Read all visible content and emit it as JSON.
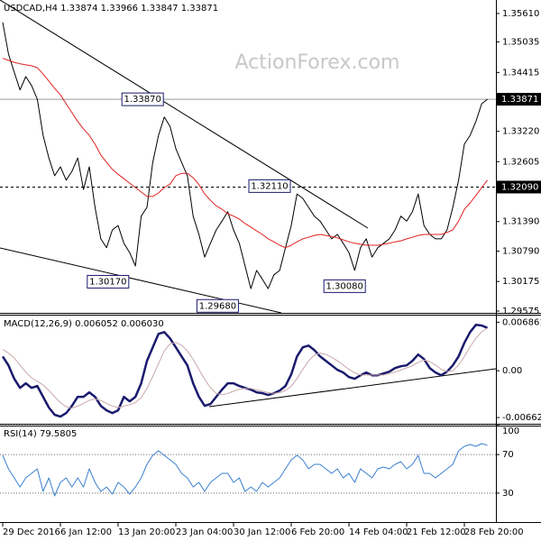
{
  "chart_data": [
    {
      "type": "line",
      "title": "USDCAD,H4  1.33874 1.33966 1.33847 1.33871",
      "watermark": "ActionForex.com",
      "ylim": [
        1.29575,
        1.35884
      ],
      "yticks": [
        {
          "value": 1.3561,
          "label": "1.35610"
        },
        1.35035,
        1.34415,
        {
          "value": 1.3322,
          "label": "1.33220"
        },
        1.32605,
        {
          "value": 1.3139,
          "label": "1.31390"
        },
        {
          "value": 1.3079,
          "label": "1.30790"
        },
        1.30175,
        1.29575
      ],
      "levels": [
        {
          "value": 1.33871,
          "dashed": false
        },
        {
          "value": {
            "value": 1.3209,
            "label": "1.32090"
          },
          "dashed": true
        }
      ],
      "annotations": [
        {
          "value": 1.3387,
          "label": "1.33870",
          "at": 28
        },
        {
          "value": 1.3017,
          "label": "1.30170",
          "at": 22
        },
        {
          "value": 1.2968,
          "label": "1.29680",
          "at": 41
        },
        {
          "value": 1.3211,
          "label": "1.32110",
          "at": 50
        },
        {
          "value": 1.3008,
          "label": "1.30080",
          "at": 63
        }
      ],
      "series": [
        {
          "color": "#000000",
          "values": [
            1.3543,
            1.3479,
            1.3442,
            1.3406,
            1.3433,
            1.3415,
            1.3387,
            1.3314,
            1.3268,
            1.3232,
            1.325,
            1.3223,
            1.3241,
            1.3268,
            1.3204,
            1.325,
            1.3168,
            1.3104,
            1.3086,
            1.3122,
            1.3131,
            1.3095,
            1.3076,
            1.3049,
            1.315,
            1.3168,
            1.3259,
            1.3314,
            1.3351,
            1.3332,
            1.3287,
            1.3259,
            1.3232,
            1.315,
            1.3113,
            1.3067,
            1.3095,
            1.3122,
            1.314,
            1.3159,
            1.3122,
            1.3095,
            1.3049,
            1.3003,
            1.304,
            1.3022,
            1.3003,
            1.3031,
            1.304,
            1.3086,
            1.3131,
            1.3195,
            1.3186,
            1.3168,
            1.315,
            1.314,
            1.3122,
            1.3104,
            1.3113,
            1.3095,
            1.3076,
            1.304,
            1.3086,
            1.3104,
            1.3067,
            1.3086,
            1.3095,
            1.3104,
            1.3122,
            1.315,
            1.314,
            1.3159,
            1.3195,
            1.3131,
            1.3113,
            1.3104,
            1.3104,
            1.3122,
            1.3168,
            1.3223,
            1.3296,
            1.3314,
            1.3342,
            1.3378,
            1.33871
          ]
        },
        {
          "color": "#e02020",
          "values": [
            1.347,
            1.3466,
            1.3462,
            1.3459,
            1.3457,
            1.3455,
            1.3451,
            1.3438,
            1.3424,
            1.3409,
            1.3396,
            1.3378,
            1.336,
            1.3342,
            1.3327,
            1.3314,
            1.3296,
            1.3274,
            1.3259,
            1.3245,
            1.3235,
            1.3226,
            1.3217,
            1.3208,
            1.3199,
            1.319,
            1.319,
            1.3197,
            1.3208,
            1.3215,
            1.3232,
            1.3237,
            1.3237,
            1.3228,
            1.3214,
            1.3195,
            1.3182,
            1.3171,
            1.3164,
            1.3155,
            1.315,
            1.3144,
            1.3135,
            1.3128,
            1.312,
            1.3113,
            1.3104,
            1.3098,
            1.3091,
            1.3086,
            1.3091,
            1.3098,
            1.3104,
            1.3107,
            1.3111,
            1.3113,
            1.3111,
            1.3109,
            1.3106,
            1.3102,
            1.3098,
            1.3095,
            1.3093,
            1.3091,
            1.3091,
            1.3091,
            1.3093,
            1.3095,
            1.3098,
            1.31,
            1.3104,
            1.3107,
            1.3111,
            1.3113,
            1.3113,
            1.3113,
            1.3113,
            1.3117,
            1.3122,
            1.314,
            1.3164,
            1.3177,
            1.3192,
            1.3208,
            1.3223
          ]
        }
      ]
    },
    {
      "type": "line",
      "title": "MACD(12,26,9) 0.006052 0.006030",
      "ylim": [
        -0.0075,
        0.0078
      ],
      "yticks": [
        0.006861,
        {
          "value": 0,
          "label": "0.00"
        },
        -0.00662
      ],
      "series": [
        {
          "color": "#1a1a6e",
          "values": [
            0.00203,
            0.00076,
            -0.00114,
            -0.00242,
            -0.00178,
            -0.00242,
            -0.00216,
            -0.00369,
            -0.00521,
            -0.00623,
            -0.00649,
            -0.00598,
            -0.00496,
            -0.00369,
            -0.00369,
            -0.00305,
            -0.00369,
            -0.00496,
            -0.0056,
            -0.00598,
            -0.0056,
            -0.00369,
            -0.00432,
            -0.00369,
            -0.00178,
            0.0014,
            0.00331,
            0.00521,
            0.00547,
            0.00458,
            0.00331,
            0.00203,
            0.00076,
            -0.00178,
            -0.00369,
            -0.00496,
            -0.00471,
            -0.00369,
            -0.00267,
            -0.00178,
            -0.00178,
            -0.00216,
            -0.00242,
            -0.00267,
            -0.00305,
            -0.00318,
            -0.00343,
            -0.00318,
            -0.0028,
            -0.00216,
            -0.00051,
            0.00203,
            0.00331,
            0.00356,
            0.00293,
            0.00203,
            0.0014,
            0.00076,
            0.00013,
            -0.00025,
            -0.00089,
            -0.00114,
            -0.00064,
            -0.00025,
            -0.00064,
            -0.00064,
            -0.00038,
            -0.00013,
            0.00038,
            0.00064,
            0.00076,
            0.0014,
            0.00229,
            0.00165,
            0.00038,
            -0.00025,
            -0.00064,
            -0.00013,
            0.00076,
            0.00203,
            0.00394,
            0.00547,
            0.00649,
            0.0064,
            0.00605
          ]
        },
        {
          "color": "#c8a8a8",
          "values": [
            0.003,
            0.0025,
            0.0018,
            0.0008,
            -0.0002,
            -0.001,
            -0.0015,
            -0.002,
            -0.0028,
            -0.0037,
            -0.0045,
            -0.0051,
            -0.0053,
            -0.005,
            -0.0046,
            -0.0042,
            -0.004,
            -0.0042,
            -0.0046,
            -0.005,
            -0.0052,
            -0.005,
            -0.0048,
            -0.0045,
            -0.0038,
            -0.0025,
            -0.0008,
            0.001,
            0.0028,
            0.0038,
            0.004,
            0.0036,
            0.0028,
            0.0016,
            0.0002,
            -0.0012,
            -0.0024,
            -0.0032,
            -0.0034,
            -0.0032,
            -0.0029,
            -0.0026,
            -0.0025,
            -0.0025,
            -0.0027,
            -0.0029,
            -0.0031,
            -0.0032,
            -0.0031,
            -0.0028,
            -0.0022,
            -0.0011,
            0.0002,
            0.0014,
            0.0022,
            0.0025,
            0.0023,
            0.0019,
            0.0014,
            0.0008,
            0.0002,
            -0.0003,
            -0.0006,
            -0.0006,
            -0.0006,
            -0.0006,
            -0.0006,
            -0.0004,
            -0.0002,
            0.0001,
            0.0004,
            0.0007,
            0.0012,
            0.0015,
            0.0013,
            0.0008,
            0.0002,
            -0.0001,
            0,
            0.0008,
            0.002,
            0.0034,
            0.0046,
            0.0055,
            0.00603
          ]
        }
      ]
    },
    {
      "type": "line",
      "title": "RSI(14) 79.5805",
      "ylim": [
        0,
        100
      ],
      "yticks": [
        100,
        70,
        30
      ],
      "grid": true,
      "categories": [
        "29 Dec 2016",
        null,
        null,
        null,
        null,
        null,
        null,
        null,
        null,
        null,
        "6 Jan 12:00",
        null,
        null,
        null,
        null,
        null,
        null,
        null,
        null,
        null,
        "13 Jan 20:00",
        null,
        null,
        null,
        null,
        null,
        null,
        null,
        null,
        null,
        "23 Jan 04:00",
        null,
        null,
        null,
        null,
        null,
        null,
        null,
        null,
        null,
        "30 Jan 12:00",
        null,
        null,
        null,
        null,
        null,
        null,
        null,
        null,
        null,
        "6 Feb 20:00",
        null,
        null,
        null,
        null,
        null,
        null,
        null,
        null,
        null,
        "14 Feb 04:00",
        null,
        null,
        null,
        null,
        null,
        null,
        null,
        null,
        null,
        "21 Feb 12:00",
        null,
        null,
        null,
        null,
        null,
        null,
        null,
        null,
        null,
        "28 Feb 20:00",
        null,
        null,
        null,
        null
      ],
      "series": [
        {
          "color": "#3a80d0",
          "values": [
            69.2,
            55.1,
            45.8,
            36.4,
            45.8,
            50.5,
            55.1,
            31.8,
            45.8,
            27.1,
            41.1,
            45.8,
            36.4,
            45.8,
            36.4,
            55.1,
            41.1,
            31.8,
            36.4,
            29.0,
            41.1,
            36.4,
            29.0,
            36.4,
            45.8,
            59.8,
            69.2,
            73.8,
            69.2,
            64.5,
            59.8,
            50.5,
            45.8,
            36.4,
            41.1,
            31.8,
            41.1,
            45.8,
            50.5,
            50.5,
            41.1,
            45.8,
            31.8,
            36.4,
            31.8,
            41.1,
            36.4,
            41.1,
            45.8,
            55.1,
            64.5,
            69.2,
            64.5,
            55.1,
            59.8,
            59.8,
            55.1,
            50.5,
            55.1,
            45.8,
            50.5,
            41.1,
            55.1,
            50.5,
            45.8,
            55.1,
            57.0,
            55.1,
            59.8,
            62.6,
            55.1,
            59.8,
            69.2,
            50.5,
            50.5,
            45.8,
            50.5,
            55.1,
            59.8,
            73.8,
            78.5,
            80.4,
            78.5,
            81.3,
            79.6
          ]
        }
      ]
    }
  ]
}
